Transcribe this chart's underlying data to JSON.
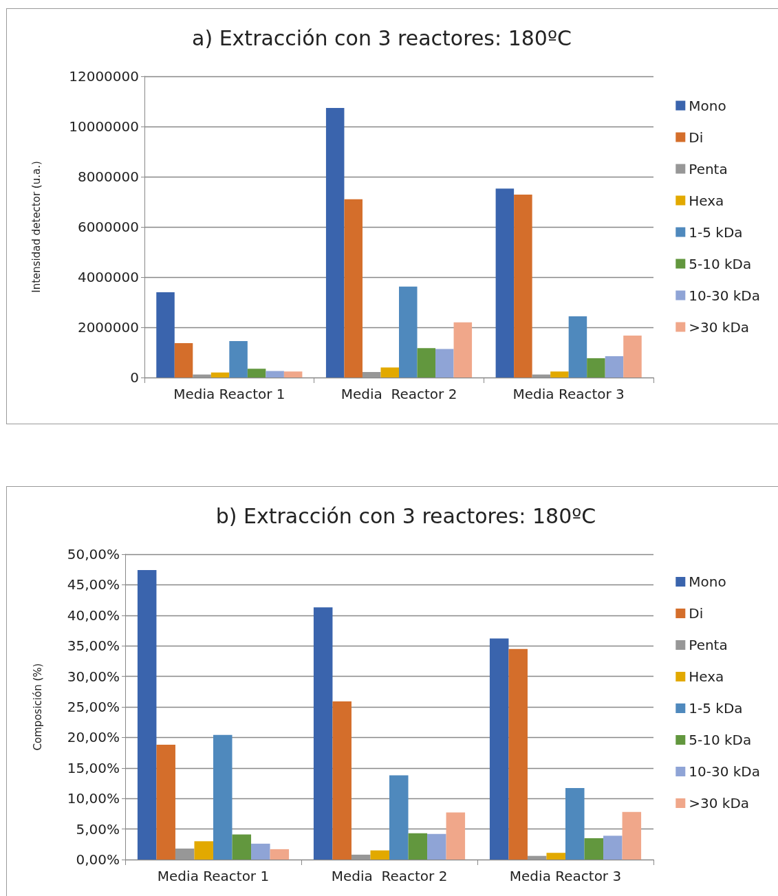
{
  "chart_data": [
    {
      "type": "bar",
      "title": "a) Extracción con 3 reactores: 180ºC",
      "ylabel": "Intensidad detector (u.a.)",
      "categories": [
        "Media Reactor 1",
        "Media  Reactor 2",
        "Media Reactor 3"
      ],
      "ylim": [
        0,
        12000000
      ],
      "yticks": [
        0,
        2000000,
        4000000,
        6000000,
        8000000,
        10000000,
        12000000
      ],
      "grid": "y",
      "legend": "right",
      "series": [
        {
          "name": "Mono",
          "color": "#3a64ad",
          "values": [
            3400000,
            10740000,
            7530000
          ]
        },
        {
          "name": "Di",
          "color": "#d46e2b",
          "values": [
            1370000,
            7100000,
            7290000
          ]
        },
        {
          "name": "Penta",
          "color": "#979797",
          "values": [
            120000,
            220000,
            120000
          ]
        },
        {
          "name": "Hexa",
          "color": "#e2a900",
          "values": [
            200000,
            400000,
            240000
          ]
        },
        {
          "name": "1-5 kDa",
          "color": "#4f89bd",
          "values": [
            1450000,
            3620000,
            2440000
          ]
        },
        {
          "name": "5-10 kDa",
          "color": "#62973e",
          "values": [
            350000,
            1170000,
            770000
          ]
        },
        {
          "name": "10-30 kDa",
          "color": "#8fa4d6",
          "values": [
            260000,
            1140000,
            850000
          ]
        },
        {
          "name": ">30 kDa",
          "color": "#f0a78a",
          "values": [
            240000,
            2200000,
            1670000
          ]
        }
      ]
    },
    {
      "type": "bar",
      "title": "b) Extracción con 3 reactores: 180ºC",
      "ylabel": "Composición (%)",
      "categories": [
        "Media Reactor 1",
        "Media  Reactor 2",
        "Media Reactor 3"
      ],
      "ylim": [
        0,
        50
      ],
      "yticks": [
        {
          "value": 0,
          "label": "0,00%"
        },
        {
          "value": 5,
          "label": "5,00%"
        },
        {
          "value": 10,
          "label": "10,00%"
        },
        {
          "value": 15,
          "label": "15,00%"
        },
        {
          "value": 20,
          "label": "20,00%"
        },
        {
          "value": 25,
          "label": "25,00%"
        },
        {
          "value": 30,
          "label": "30,00%"
        },
        {
          "value": 35,
          "label": "35,00%"
        },
        {
          "value": 40,
          "label": "40,00%"
        },
        {
          "value": 45,
          "label": "45,00%"
        },
        {
          "value": 50,
          "label": "50,00%"
        }
      ],
      "grid": "y",
      "legend": "right",
      "series": [
        {
          "name": "Mono",
          "color": "#3a64ad",
          "values": [
            47.4,
            41.3,
            36.2
          ]
        },
        {
          "name": "Di",
          "color": "#d46e2b",
          "values": [
            18.8,
            25.9,
            34.5
          ]
        },
        {
          "name": "Penta",
          "color": "#979797",
          "values": [
            1.8,
            0.8,
            0.6
          ]
        },
        {
          "name": "Hexa",
          "color": "#e2a900",
          "values": [
            3.0,
            1.5,
            1.1
          ]
        },
        {
          "name": "1-5 kDa",
          "color": "#4f89bd",
          "values": [
            20.4,
            13.8,
            11.7
          ]
        },
        {
          "name": "5-10 kDa",
          "color": "#62973e",
          "values": [
            4.1,
            4.3,
            3.5
          ]
        },
        {
          "name": "10-30 kDa",
          "color": "#8fa4d6",
          "values": [
            2.6,
            4.2,
            3.9
          ]
        },
        {
          "name": ">30 kDa",
          "color": "#f0a78a",
          "values": [
            1.7,
            7.7,
            7.8
          ]
        }
      ]
    }
  ]
}
